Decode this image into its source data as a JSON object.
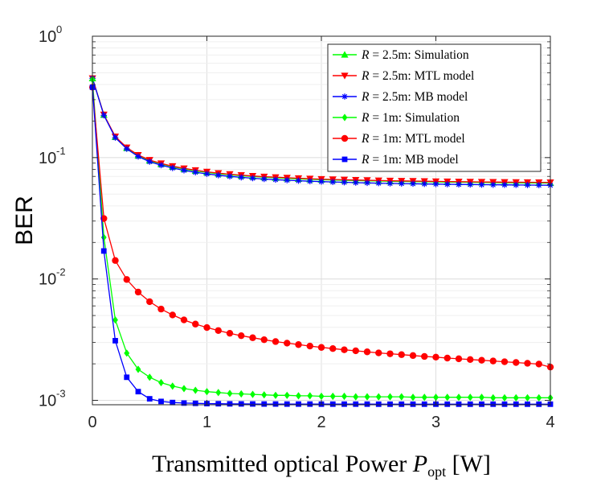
{
  "chart_data": {
    "type": "line",
    "title": "",
    "xlabel": {
      "main": "Transmitted optical Power ",
      "symbol": "P",
      "subscript": "opt",
      "unit": " [W]"
    },
    "ylabel": "BER",
    "xlim": [
      0,
      4
    ],
    "ylim": [
      0.00092,
      1
    ],
    "yscale": "log",
    "grid": true,
    "legend_position": "top-right",
    "x_ticks": [
      0,
      1,
      2,
      3,
      4
    ],
    "x_tick_labels": [
      "0",
      "1",
      "2",
      "3",
      "4"
    ],
    "y_ticks": [
      0.001,
      0.01,
      0.1,
      1
    ],
    "y_tick_labels": [
      {
        "base": "10",
        "exp": "-3"
      },
      {
        "base": "10",
        "exp": "-2"
      },
      {
        "base": "10",
        "exp": "-1"
      },
      {
        "base": "10",
        "exp": "0"
      }
    ],
    "x": [
      0.001,
      0.1,
      0.2,
      0.3,
      0.4,
      0.5,
      0.6,
      0.7,
      0.8,
      0.9,
      1.0,
      1.1,
      1.2,
      1.3,
      1.4,
      1.5,
      1.6,
      1.7,
      1.8,
      1.9,
      2.0,
      2.1,
      2.2,
      2.3,
      2.4,
      2.5,
      2.6,
      2.7,
      2.8,
      2.9,
      3.0,
      3.1,
      3.2,
      3.3,
      3.4,
      3.5,
      3.6,
      3.7,
      3.8,
      3.9,
      4.0
    ],
    "series": [
      {
        "name": "R = 2.5m: Simulation",
        "r_label": "R",
        "rest_label": " = 2.5m: Simulation",
        "color": "#00ff00",
        "marker": "triangle-up",
        "values": [
          0.45,
          0.225,
          0.148,
          0.12,
          0.104,
          0.0945,
          0.0885,
          0.084,
          0.0805,
          0.0778,
          0.0755,
          0.0737,
          0.0722,
          0.0709,
          0.0698,
          0.0689,
          0.0681,
          0.0674,
          0.0668,
          0.0663,
          0.0658,
          0.0654,
          0.065,
          0.0647,
          0.0644,
          0.0641,
          0.0638,
          0.0636,
          0.0634,
          0.0632,
          0.063,
          0.0628,
          0.0627,
          0.0625,
          0.0624,
          0.0622,
          0.0621,
          0.062,
          0.0619,
          0.0618,
          0.0617
        ]
      },
      {
        "name": "R = 2.5m: MTL model",
        "r_label": "R",
        "rest_label": " = 2.5m: MTL model",
        "color": "#ff0000",
        "marker": "triangle-down",
        "values": [
          0.45,
          0.226,
          0.149,
          0.121,
          0.105,
          0.0955,
          0.0895,
          0.085,
          0.0815,
          0.0787,
          0.0764,
          0.0745,
          0.073,
          0.0717,
          0.0706,
          0.0697,
          0.0689,
          0.0682,
          0.0676,
          0.067,
          0.0665,
          0.0661,
          0.0657,
          0.0654,
          0.0651,
          0.0648,
          0.0645,
          0.0643,
          0.0641,
          0.0639,
          0.0637,
          0.0635,
          0.0633,
          0.0632,
          0.063,
          0.0629,
          0.0628,
          0.0627,
          0.0626,
          0.0625,
          0.0624
        ]
      },
      {
        "name": "R = 2.5m: MB model",
        "r_label": "R",
        "rest_label": " = 2.5m: MB model",
        "color": "#0000ff",
        "marker": "star",
        "values": [
          0.45,
          0.223,
          0.146,
          0.118,
          0.102,
          0.0925,
          0.0865,
          0.082,
          0.0785,
          0.0757,
          0.0734,
          0.0715,
          0.07,
          0.0687,
          0.0676,
          0.0666,
          0.0658,
          0.0651,
          0.0645,
          0.0639,
          0.0634,
          0.063,
          0.0626,
          0.0622,
          0.0619,
          0.0616,
          0.0613,
          0.0611,
          0.0609,
          0.0607,
          0.0605,
          0.0603,
          0.0601,
          0.06,
          0.0598,
          0.0597,
          0.0596,
          0.0595,
          0.0594,
          0.0593,
          0.0592
        ]
      },
      {
        "name": "R = 1m: Simulation",
        "r_label": "R",
        "rest_label": " = 1m: Simulation",
        "color": "#00ff00",
        "marker": "diamond",
        "values": [
          0.44,
          0.022,
          0.0046,
          0.00245,
          0.0018,
          0.00155,
          0.0014,
          0.00131,
          0.00125,
          0.00121,
          0.00118,
          0.00116,
          0.00114,
          0.00113,
          0.00112,
          0.00111,
          0.0011,
          0.0011,
          0.00109,
          0.00109,
          0.00108,
          0.00108,
          0.00108,
          0.00107,
          0.00107,
          0.00107,
          0.00107,
          0.00107,
          0.00106,
          0.00106,
          0.00106,
          0.00106,
          0.00106,
          0.00106,
          0.00106,
          0.00105,
          0.00105,
          0.00105,
          0.00105,
          0.00105,
          0.00105
        ]
      },
      {
        "name": "R = 1m: MTL model",
        "r_label": "R",
        "rest_label": " = 1m: MTL model",
        "color": "#ff0000",
        "marker": "circle",
        "values": [
          0.38,
          0.0315,
          0.0142,
          0.0099,
          0.0078,
          0.0065,
          0.00565,
          0.00505,
          0.0046,
          0.00425,
          0.00398,
          0.00376,
          0.00357,
          0.00341,
          0.00328,
          0.00316,
          0.00305,
          0.00296,
          0.00288,
          0.0028,
          0.00273,
          0.00267,
          0.00261,
          0.00256,
          0.00251,
          0.00246,
          0.00242,
          0.00238,
          0.00234,
          0.0023,
          0.00227,
          0.00223,
          0.0022,
          0.00217,
          0.00214,
          0.00211,
          0.00208,
          0.00205,
          0.00202,
          0.00199,
          0.00188
        ]
      },
      {
        "name": "R = 1m: MB model",
        "r_label": "R",
        "rest_label": " = 1m: MB model",
        "color": "#0000ff",
        "marker": "square",
        "values": [
          0.38,
          0.017,
          0.0031,
          0.00155,
          0.00118,
          0.00103,
          0.00098,
          0.00096,
          0.00095,
          0.000945,
          0.00094,
          0.000938,
          0.000936,
          0.000935,
          0.000934,
          0.000933,
          0.000933,
          0.000932,
          0.000932,
          0.000932,
          0.000931,
          0.000931,
          0.000931,
          0.000931,
          0.000931,
          0.00093,
          0.00093,
          0.00093,
          0.00093,
          0.00093,
          0.00093,
          0.00093,
          0.00093,
          0.00093,
          0.00093,
          0.00093,
          0.00093,
          0.00093,
          0.00093,
          0.00093,
          0.00093
        ]
      }
    ]
  }
}
